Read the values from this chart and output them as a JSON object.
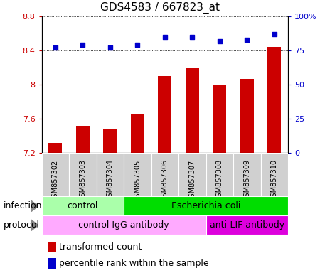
{
  "title": "GDS4583 / 667823_at",
  "samples": [
    "GSM857302",
    "GSM857303",
    "GSM857304",
    "GSM857305",
    "GSM857306",
    "GSM857307",
    "GSM857308",
    "GSM857309",
    "GSM857310"
  ],
  "transformed_count": [
    7.32,
    7.52,
    7.48,
    7.65,
    8.1,
    8.2,
    8.0,
    8.07,
    8.44
  ],
  "percentile_rank": [
    77,
    79,
    77,
    79,
    85,
    85,
    82,
    83,
    87
  ],
  "ylim_left": [
    7.2,
    8.8
  ],
  "ylim_right": [
    0,
    100
  ],
  "yticks_left": [
    7.2,
    7.6,
    8.0,
    8.4,
    8.8
  ],
  "yticks_right": [
    0,
    25,
    50,
    75,
    100
  ],
  "ytick_labels_left": [
    "7.2",
    "7.6",
    "8",
    "8.4",
    "8.8"
  ],
  "ytick_labels_right": [
    "0",
    "25",
    "50",
    "75",
    "100%"
  ],
  "bar_color": "#cc0000",
  "dot_color": "#0000cc",
  "bar_baseline": 7.2,
  "infection_groups": [
    {
      "label": "control",
      "start": 0,
      "end": 3,
      "color": "#aaffaa"
    },
    {
      "label": "Escherichia coli",
      "start": 3,
      "end": 9,
      "color": "#00dd00"
    }
  ],
  "protocol_groups": [
    {
      "label": "control IgG antibody",
      "start": 0,
      "end": 6,
      "color": "#ffaaff"
    },
    {
      "label": "anti-LIF antibody",
      "start": 6,
      "end": 9,
      "color": "#dd00dd"
    }
  ],
  "legend_red_label": "transformed count",
  "legend_blue_label": "percentile rank within the sample",
  "infection_label": "infection",
  "protocol_label": "protocol",
  "title_fontsize": 11,
  "tick_fontsize": 8,
  "sample_fontsize": 7,
  "band_fontsize": 9,
  "legend_fontsize": 9
}
